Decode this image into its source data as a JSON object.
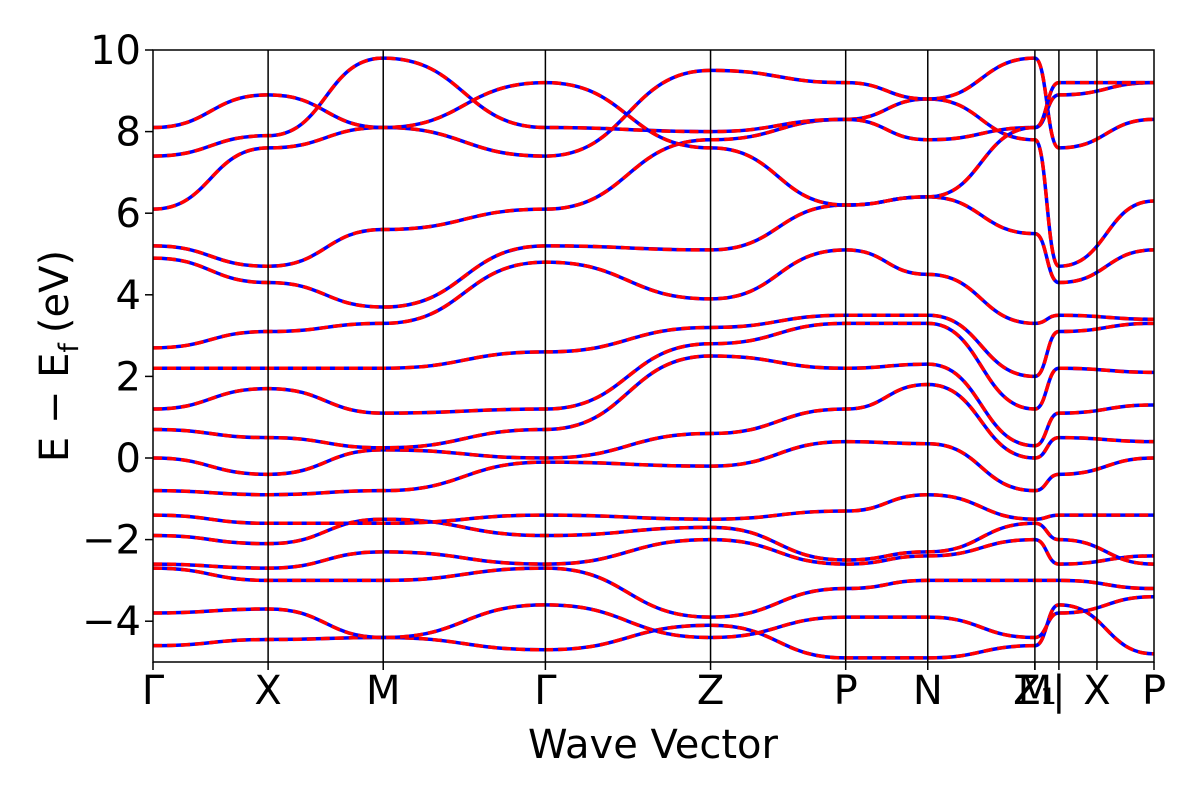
{
  "chart_data": {
    "type": "line",
    "title": "",
    "xlabel": "Wave Vector",
    "ylabel": "E − E",
    "ylabel_sub": "f",
    "ylabel_unit": "(eV)",
    "ylim": [
      -5,
      10
    ],
    "yticks": [
      -4,
      -2,
      0,
      2,
      4,
      6,
      8,
      10
    ],
    "ytick_labels": [
      "−4",
      "−2",
      "0",
      "2",
      "4",
      "6",
      "8",
      "10"
    ],
    "x_high_symmetry": [
      {
        "label": "Γ",
        "pos": 0.0
      },
      {
        "label": "X",
        "pos": 0.115
      },
      {
        "label": "M",
        "pos": 0.23
      },
      {
        "label": "Γ",
        "pos": 0.392
      },
      {
        "label": "Z",
        "pos": 0.557
      },
      {
        "label": "P",
        "pos": 0.692
      },
      {
        "label": "N",
        "pos": 0.774
      },
      {
        "label": "Z₁",
        "pos": 0.881
      },
      {
        "label": "M",
        "pos": 0.881
      },
      {
        "label": "|",
        "pos": 0.905
      },
      {
        "label": "X",
        "pos": 0.943
      },
      {
        "label": "P",
        "pos": 1.0
      }
    ],
    "x_segments": [
      0.0,
      0.115,
      0.23,
      0.392,
      0.557,
      0.692,
      0.774,
      0.881,
      0.905,
      1.0
    ],
    "grid": false,
    "legend": "none",
    "colors": {
      "series_a": "#0000ff",
      "series_b": "#ff0000",
      "axes": "#000000"
    },
    "series": [
      {
        "values": [
          -4.6,
          -4.45,
          -4.4,
          -4.7,
          -4.1,
          -4.9,
          -4.9,
          -4.6,
          -3.6,
          -4.8
        ]
      },
      {
        "values": [
          -3.8,
          -3.7,
          -4.4,
          -3.6,
          -4.4,
          -3.9,
          -3.9,
          -4.4,
          -3.8,
          -3.4
        ]
      },
      {
        "values": [
          -2.7,
          -3.0,
          -3.0,
          -2.7,
          -3.9,
          -3.2,
          -3.0,
          -3.0,
          -3.0,
          -3.2
        ]
      },
      {
        "values": [
          -2.6,
          -2.7,
          -2.3,
          -2.6,
          -2.0,
          -2.6,
          -2.4,
          -2.0,
          -2.6,
          -2.4
        ]
      },
      {
        "values": [
          -1.9,
          -2.1,
          -1.5,
          -1.9,
          -1.7,
          -2.5,
          -2.3,
          -1.6,
          -2.0,
          -2.6
        ]
      },
      {
        "values": [
          -1.4,
          -1.6,
          -1.6,
          -1.4,
          -1.5,
          -1.3,
          -0.9,
          -1.5,
          -1.4,
          -1.4
        ]
      },
      {
        "values": [
          -0.8,
          -0.9,
          -0.8,
          -0.1,
          -0.2,
          0.4,
          0.35,
          -0.8,
          -0.4,
          0.0
        ]
      },
      {
        "values": [
          0.0,
          -0.4,
          0.2,
          0.0,
          0.6,
          1.2,
          1.8,
          0.0,
          0.5,
          0.4
        ]
      },
      {
        "values": [
          0.7,
          0.5,
          0.25,
          0.7,
          2.5,
          2.2,
          2.3,
          0.3,
          1.1,
          1.3
        ]
      },
      {
        "values": [
          1.2,
          1.7,
          1.1,
          1.2,
          2.8,
          3.3,
          3.3,
          1.2,
          2.2,
          2.1
        ]
      },
      {
        "values": [
          2.2,
          2.2,
          2.2,
          2.6,
          3.2,
          3.5,
          3.5,
          2.0,
          3.1,
          3.3
        ]
      },
      {
        "values": [
          2.7,
          3.1,
          3.3,
          4.8,
          3.9,
          5.1,
          4.5,
          3.3,
          3.5,
          3.4
        ]
      },
      {
        "values": [
          4.9,
          4.3,
          3.7,
          5.2,
          5.1,
          6.2,
          6.4,
          5.5,
          4.3,
          5.1
        ]
      },
      {
        "values": [
          5.2,
          4.7,
          5.6,
          6.1,
          7.8,
          8.3,
          8.8,
          7.8,
          4.7,
          6.3
        ]
      },
      {
        "values": [
          6.1,
          7.6,
          8.1,
          7.4,
          9.5,
          9.2,
          8.8,
          9.8,
          7.6,
          8.3
        ]
      },
      {
        "values": [
          7.4,
          7.9,
          9.8,
          8.1,
          8.0,
          8.3,
          7.8,
          8.1,
          8.9,
          9.2
        ]
      },
      {
        "values": [
          8.1,
          8.9,
          8.1,
          9.2,
          7.6,
          6.2,
          6.4,
          8.1,
          9.2,
          9.2
        ]
      }
    ]
  }
}
